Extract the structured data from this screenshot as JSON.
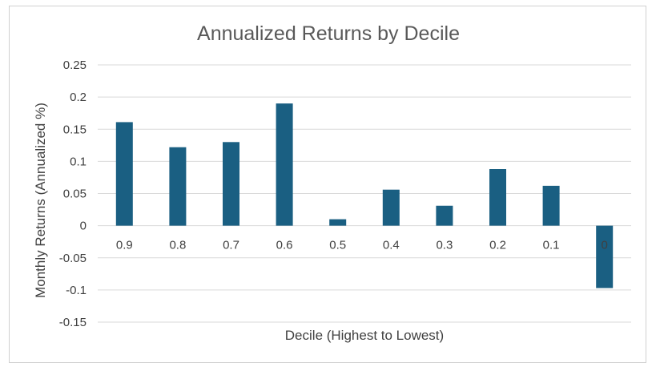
{
  "chart_data": {
    "type": "bar",
    "title": "Annualized Returns by Decile",
    "xlabel": "Decile (Highest to Lowest)",
    "ylabel": "Monthly Returns (Annualized %)",
    "categories": [
      "0.9",
      "0.8",
      "0.7",
      "0.6",
      "0.5",
      "0.4",
      "0.3",
      "0.2",
      "0.1",
      "0"
    ],
    "values": [
      0.161,
      0.122,
      0.13,
      0.19,
      0.01,
      0.056,
      0.031,
      0.088,
      0.062,
      -0.097
    ],
    "ylim": [
      -0.15,
      0.25
    ],
    "yticks": [
      "0.25",
      "0.2",
      "0.15",
      "0.1",
      "0.05",
      "0",
      "-0.05",
      "-0.1",
      "-0.15"
    ],
    "ytick_values": [
      0.25,
      0.2,
      0.15,
      0.1,
      0.05,
      0,
      -0.05,
      -0.1,
      -0.15
    ],
    "grid": true,
    "legend": "none",
    "bar_color": "#1a5f82",
    "grid_color": "#d9d9d9"
  }
}
